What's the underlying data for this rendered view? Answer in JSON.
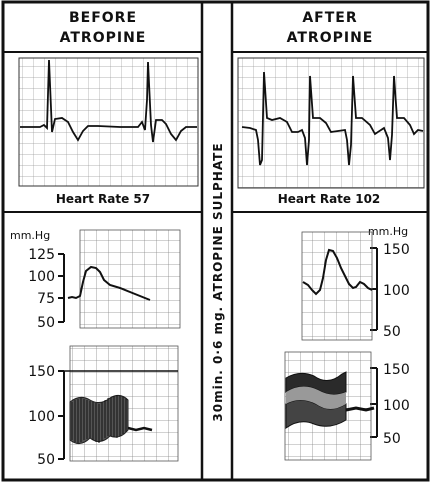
{
  "headers": {
    "before_line1": "BEFORE",
    "before_line2": "ATROPINE",
    "after_line1": "AFTER",
    "after_line2": "ATROPINE"
  },
  "center_label": "30min. 0·6 mg. ATROPINE SULPHATE",
  "ecg": {
    "before_caption": "Heart Rate 57",
    "after_caption": "Heart Rate 102"
  },
  "bp_units": {
    "left": "mm.Hg",
    "right": "mm.Hg"
  },
  "bp_before_ticks": [
    "125",
    "100",
    "75",
    "50"
  ],
  "bp_after_ticks": [
    "150",
    "100",
    "50"
  ],
  "pulse_before_ticks": [
    "150",
    "100",
    "50"
  ],
  "pulse_after_ticks": [
    "150",
    "100",
    "50"
  ]
}
